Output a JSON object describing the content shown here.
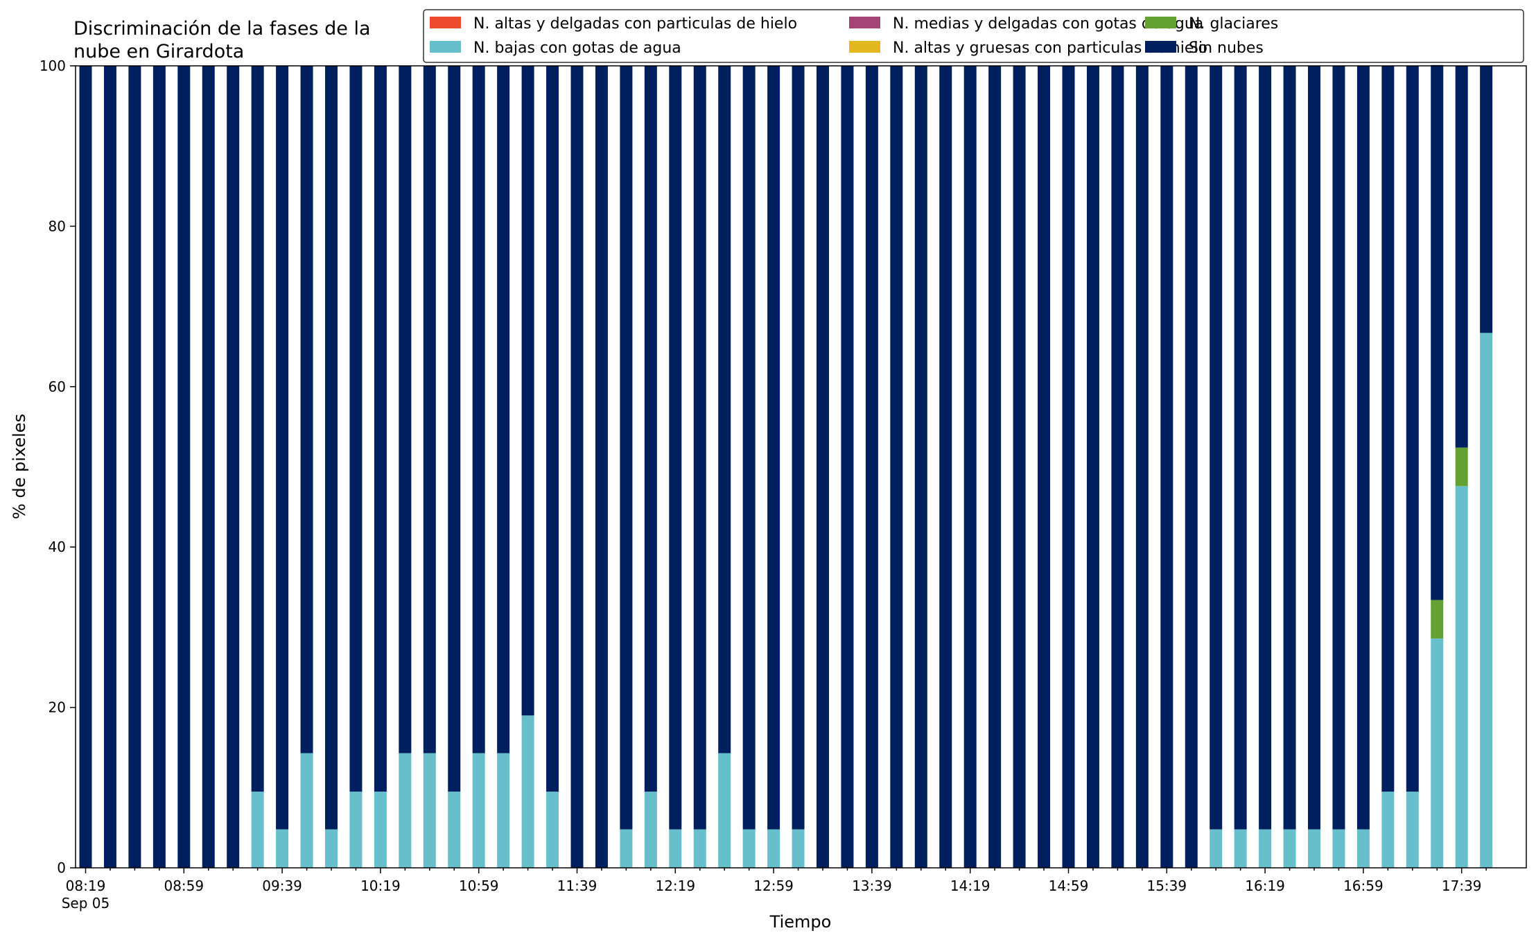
{
  "chart_data": {
    "type": "bar",
    "stacked": true,
    "title_lines": [
      "Discriminación de la fases de la",
      "nube en Girardota"
    ],
    "xlabel": "Tiempo",
    "ylabel": "% de pixeles",
    "ylim": [
      0,
      100
    ],
    "yticks": [
      0,
      20,
      40,
      60,
      80,
      100
    ],
    "grid": false,
    "legend_position": "top-right",
    "x_start": "08:19",
    "x_step_minutes": 10,
    "x_count": 58,
    "x_tick_labels": [
      "08:19",
      "08:59",
      "09:39",
      "10:19",
      "10:59",
      "11:39",
      "12:19",
      "12:59",
      "13:39",
      "14:19",
      "14:59",
      "15:39",
      "16:19",
      "16:59",
      "17:39"
    ],
    "x_tick_every": 4,
    "date_label": "Sep 05",
    "series": [
      {
        "name": "N. altas y delgadas con particulas de hielo",
        "color": "#ee4a2d",
        "values": [
          0,
          0,
          0,
          0,
          0,
          0,
          0,
          0,
          0,
          0,
          0,
          0,
          0,
          0,
          0,
          0,
          0,
          0,
          0,
          0,
          0,
          0,
          0,
          0,
          0,
          0,
          0,
          0,
          0,
          0,
          0,
          0,
          0,
          0,
          0,
          0,
          0,
          0,
          0,
          0,
          0,
          0,
          0,
          0,
          0,
          0,
          0,
          0,
          0,
          0,
          0,
          0,
          0,
          0,
          0,
          0,
          0,
          0
        ]
      },
      {
        "name": "N. altas y gruesas con particulas de hielo",
        "color": "#e3b81f",
        "values": [
          0,
          0,
          0,
          0,
          0,
          0,
          0,
          0,
          0,
          0,
          0,
          0,
          0,
          0,
          0,
          0,
          0,
          0,
          0,
          0,
          0,
          0,
          0,
          0,
          0,
          0,
          0,
          0,
          0,
          0,
          0,
          0,
          0,
          0,
          0,
          0,
          0,
          0,
          0,
          0,
          0,
          0,
          0,
          0,
          0,
          0,
          0,
          0,
          0,
          0,
          0,
          0,
          0,
          0,
          0,
          0,
          0,
          0
        ]
      },
      {
        "name": "N. bajas con gotas de agua",
        "color": "#67bfcb",
        "values": [
          0,
          0,
          0,
          0,
          0,
          0,
          0,
          9.5,
          4.8,
          14.3,
          4.8,
          9.5,
          9.5,
          14.3,
          14.3,
          9.5,
          14.3,
          14.3,
          19.0,
          9.5,
          0,
          0,
          4.8,
          9.5,
          4.8,
          4.8,
          14.3,
          4.8,
          4.8,
          4.8,
          0,
          0,
          0,
          0,
          0,
          0,
          0,
          0,
          0,
          0,
          0,
          0,
          0,
          0,
          0,
          0,
          4.8,
          4.8,
          4.8,
          4.8,
          4.8,
          4.8,
          4.8,
          9.5,
          9.5,
          28.6,
          47.6,
          66.7
        ]
      },
      {
        "name": "N. glaciares",
        "color": "#62a132",
        "values": [
          0,
          0,
          0,
          0,
          0,
          0,
          0,
          0,
          0,
          0,
          0,
          0,
          0,
          0,
          0,
          0,
          0,
          0,
          0,
          0,
          0,
          0,
          0,
          0,
          0,
          0,
          0,
          0,
          0,
          0,
          0,
          0,
          0,
          0,
          0,
          0,
          0,
          0,
          0,
          0,
          0,
          0,
          0,
          0,
          0,
          0,
          0,
          0,
          0,
          0,
          0,
          0,
          0,
          0,
          0,
          4.8,
          4.8,
          0
        ]
      },
      {
        "name": "N. medias y delgadas con gotas de agua",
        "color": "#a54575",
        "values": [
          0,
          0,
          0,
          0,
          0,
          0,
          0,
          0,
          0,
          0,
          0,
          0,
          0,
          0,
          0,
          0,
          0,
          0,
          0,
          0,
          0,
          0,
          0,
          0,
          0,
          0,
          0,
          0,
          0,
          0,
          0,
          0,
          0,
          0,
          0,
          0,
          0,
          0,
          0,
          0,
          0,
          0,
          0,
          0,
          0,
          0,
          0,
          0,
          0,
          0,
          0,
          0,
          0,
          0,
          0,
          0,
          0,
          0
        ]
      },
      {
        "name": "Sin nubes",
        "color": "#001f5f",
        "values": [
          100,
          100,
          100,
          100,
          100,
          100,
          100,
          90.5,
          95.2,
          85.7,
          95.2,
          90.5,
          90.5,
          85.7,
          85.7,
          90.5,
          85.7,
          85.7,
          81.0,
          90.5,
          100,
          100,
          95.2,
          90.5,
          95.2,
          95.2,
          85.7,
          95.2,
          95.2,
          95.2,
          100,
          100,
          100,
          100,
          100,
          100,
          100,
          100,
          100,
          100,
          100,
          100,
          100,
          100,
          100,
          100,
          95.2,
          95.2,
          95.2,
          95.2,
          95.2,
          95.2,
          95.2,
          90.5,
          90.5,
          66.7,
          47.6,
          33.3
        ]
      }
    ],
    "legend_order": [
      0,
      2,
      4,
      1,
      3,
      5
    ]
  }
}
